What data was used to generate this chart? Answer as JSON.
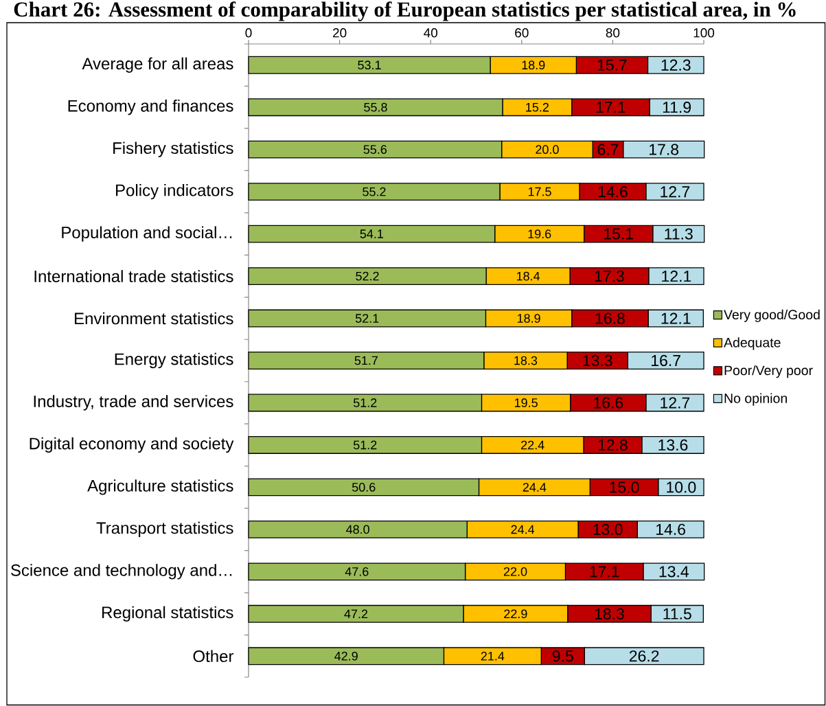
{
  "chart_data": {
    "type": "bar",
    "orientation": "horizontal",
    "stacked": true,
    "title": "Chart 26: Assessment of comparability of European statistics per statistical area, in %",
    "categories": [
      "Average for all areas",
      "Economy and finances",
      "Fishery statistics",
      "Policy indicators",
      "Population and social…",
      "International trade statistics",
      "Environment statistics",
      "Energy statistics",
      "Industry, trade and services",
      "Digital economy and society",
      "Agriculture statistics",
      "Transport statistics",
      "Science and technology and…",
      "Regional statistics",
      "Other"
    ],
    "series": [
      {
        "name": "Very good/Good",
        "color": "#9bbb59",
        "values": [
          53.1,
          55.8,
          55.6,
          55.2,
          54.1,
          52.2,
          52.1,
          51.7,
          51.2,
          51.2,
          50.6,
          48.0,
          47.6,
          47.2,
          42.9
        ],
        "value_labels": [
          "53.1",
          "55.8",
          "55.6",
          "55.2",
          "54.1",
          "52.2",
          "52.1",
          "51.7",
          "51.2",
          "51.2",
          "50.6",
          "48.0",
          "47.6",
          "47.2",
          "42.9"
        ]
      },
      {
        "name": "Adequate",
        "color": "#ffc000",
        "values": [
          18.9,
          15.2,
          20.0,
          17.5,
          19.6,
          18.4,
          18.9,
          18.3,
          19.5,
          22.4,
          24.4,
          24.4,
          22.0,
          22.9,
          21.4
        ],
        "value_labels": [
          "18.9",
          "15.2",
          "20.0",
          "17.5",
          "19.6",
          "18.4",
          "18.9",
          "18.3",
          "19.5",
          "22.4",
          "24.4",
          "24.4",
          "22.0",
          "22.9",
          "21.4"
        ]
      },
      {
        "name": "Poor/Very poor",
        "color": "#c00000",
        "values": [
          15.7,
          17.1,
          6.7,
          14.6,
          15.1,
          17.3,
          16.8,
          13.3,
          16.6,
          12.8,
          15.0,
          13.0,
          17.1,
          18.3,
          9.5
        ],
        "value_labels": [
          "15.7",
          "17.1",
          "6.7",
          "14.6",
          "15.1",
          "17.3",
          "16.8",
          "13.3",
          "16.6",
          "12.8",
          "15.0",
          "13.0",
          "17.1",
          "18.3",
          "9.5"
        ]
      },
      {
        "name": "No opinion",
        "color": "#b7dee8",
        "values": [
          12.3,
          11.9,
          17.8,
          12.7,
          11.3,
          12.1,
          12.1,
          16.7,
          12.7,
          13.6,
          10.0,
          14.6,
          13.4,
          11.5,
          26.2
        ],
        "value_labels": [
          "12.3",
          "11.9",
          "17.8",
          "12.7",
          "11.3",
          "12.1",
          "12.1",
          "16.7",
          "12.7",
          "13.6",
          "10.0",
          "14.6",
          "13.4",
          "11.5",
          "26.2"
        ]
      }
    ],
    "xlim": [
      0,
      100
    ],
    "xticks": [
      0,
      20,
      40,
      60,
      80,
      100
    ],
    "legend": "right"
  }
}
